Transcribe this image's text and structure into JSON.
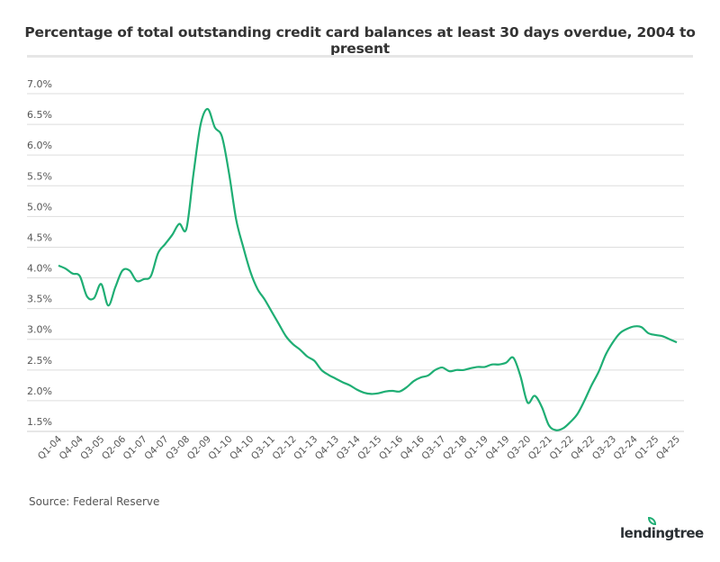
{
  "chart_data": {
    "type": "line",
    "title": "Percentage of total outstanding credit card balances at least 30 days overdue, 2004 to present",
    "xlabel": "",
    "ylabel": "",
    "ylim": [
      1.5,
      7.0
    ],
    "yticks": [
      "1.5%",
      "2.0%",
      "2.5%",
      "3.0%",
      "3.5%",
      "4.0%",
      "4.5%",
      "5.0%",
      "5.5%",
      "6.0%",
      "6.5%",
      "7.0%"
    ],
    "ytick_values": [
      1.5,
      2.0,
      2.5,
      3.0,
      3.5,
      4.0,
      4.5,
      5.0,
      5.5,
      6.0,
      6.5,
      7.0
    ],
    "grid": true,
    "line_color": "#1fae74",
    "x": [
      "Q1-04",
      "Q2-04",
      "Q3-04",
      "Q4-04",
      "Q1-05",
      "Q2-05",
      "Q3-05",
      "Q4-05",
      "Q1-06",
      "Q2-06",
      "Q3-06",
      "Q4-06",
      "Q1-07",
      "Q2-07",
      "Q3-07",
      "Q4-07",
      "Q1-08",
      "Q2-08",
      "Q3-08",
      "Q4-08",
      "Q1-09",
      "Q2-09",
      "Q3-09",
      "Q4-09",
      "Q1-10",
      "Q2-10",
      "Q3-10",
      "Q4-10",
      "Q1-11",
      "Q2-11",
      "Q3-11",
      "Q4-11",
      "Q1-12",
      "Q2-12",
      "Q3-12",
      "Q4-12",
      "Q1-13",
      "Q2-13",
      "Q3-13",
      "Q4-13",
      "Q1-14",
      "Q2-14",
      "Q3-14",
      "Q4-14",
      "Q1-15",
      "Q2-15",
      "Q3-15",
      "Q4-15",
      "Q1-16",
      "Q2-16",
      "Q3-16",
      "Q4-16",
      "Q1-17",
      "Q2-17",
      "Q3-17",
      "Q4-17",
      "Q1-18",
      "Q2-18",
      "Q3-18",
      "Q4-18",
      "Q1-19",
      "Q2-19",
      "Q3-19",
      "Q4-19",
      "Q1-20",
      "Q2-20",
      "Q3-20",
      "Q4-20",
      "Q1-21",
      "Q2-21",
      "Q3-21",
      "Q4-21",
      "Q1-22",
      "Q2-22",
      "Q3-22",
      "Q4-22",
      "Q1-23",
      "Q2-23",
      "Q3-23",
      "Q4-23",
      "Q1-24",
      "Q2-24",
      "Q3-24",
      "Q4-24",
      "Q1-25",
      "Q2-25",
      "Q3-25",
      "Q4-25"
    ],
    "xtick_labels": [
      "Q1-04",
      "Q4-04",
      "Q3-05",
      "Q2-06",
      "Q1-07",
      "Q4-07",
      "Q3-08",
      "Q2-09",
      "Q1-10",
      "Q4-10",
      "Q3-11",
      "Q2-12",
      "Q1-13",
      "Q4-13",
      "Q3-14",
      "Q2-15",
      "Q1-16",
      "Q4-16",
      "Q3-17",
      "Q2-18",
      "Q1-19",
      "Q4-19",
      "Q3-20",
      "Q2-21",
      "Q1-22",
      "Q4-22",
      "Q3-23",
      "Q2-24",
      "Q1-25",
      "Q4-25"
    ],
    "y": [
      4.2,
      4.15,
      4.07,
      4.03,
      3.7,
      3.67,
      3.9,
      3.55,
      3.85,
      4.12,
      4.12,
      3.95,
      3.98,
      4.03,
      4.4,
      4.55,
      4.7,
      4.88,
      4.8,
      5.7,
      6.5,
      6.75,
      6.45,
      6.3,
      5.7,
      4.95,
      4.5,
      4.1,
      3.82,
      3.65,
      3.45,
      3.25,
      3.05,
      2.92,
      2.83,
      2.72,
      2.65,
      2.5,
      2.42,
      2.36,
      2.3,
      2.25,
      2.18,
      2.13,
      2.11,
      2.12,
      2.15,
      2.16,
      2.15,
      2.22,
      2.32,
      2.38,
      2.41,
      2.5,
      2.54,
      2.48,
      2.5,
      2.5,
      2.53,
      2.55,
      2.55,
      2.59,
      2.59,
      2.62,
      2.7,
      2.4,
      1.97,
      2.08,
      1.9,
      1.6,
      1.52,
      1.55,
      1.65,
      1.78,
      2.0,
      2.25,
      2.47,
      2.75,
      2.95,
      3.1,
      3.17,
      3.21,
      3.2,
      3.1,
      3.07,
      3.05,
      3.0,
      2.95
    ]
  },
  "footer": {
    "source": "Source: Federal Reserve",
    "logo_text": "lendingtree"
  }
}
